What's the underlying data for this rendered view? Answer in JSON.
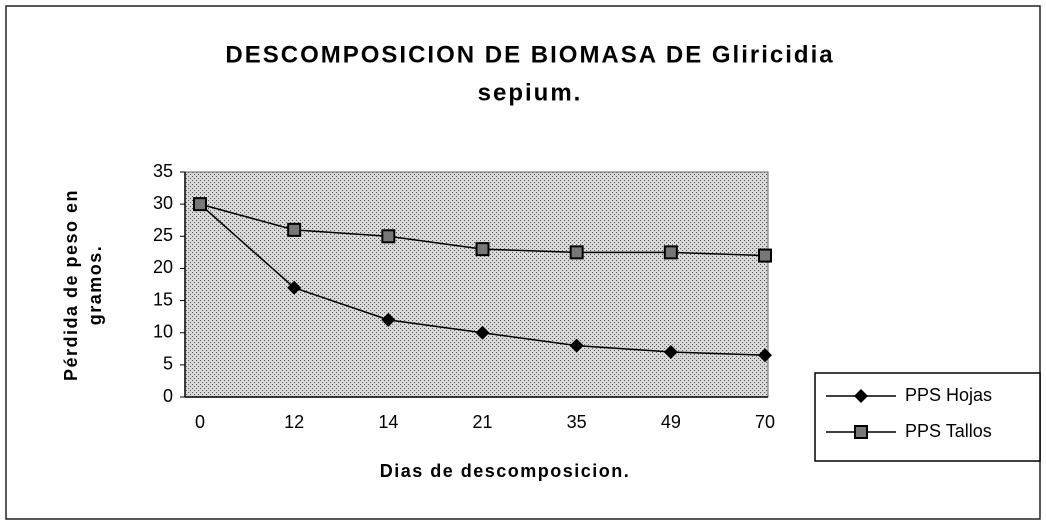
{
  "chart_data": {
    "type": "line",
    "title": [
      "DESCOMPOSICION DE BIOMASA DE Gliricidia",
      "sepium."
    ],
    "x_label": "Dias de descomposicion.",
    "y_label": [
      "Pérdida de peso en",
      "gramos."
    ],
    "categories": [
      "0",
      "12",
      "14",
      "21",
      "35",
      "49",
      "70"
    ],
    "series": [
      {
        "name": "PPS Hojas",
        "color": "#000000",
        "marker": "diamond",
        "values": [
          30,
          17,
          12,
          10,
          8,
          7,
          6.5
        ]
      },
      {
        "name": "PPS Tallos",
        "color": "#000000",
        "marker": "square",
        "values": [
          30,
          26,
          25,
          23,
          22.5,
          22.5,
          22
        ]
      }
    ],
    "ylim": [
      0,
      35
    ],
    "yticks": [
      0,
      5,
      10,
      15,
      20,
      25,
      30,
      35
    ],
    "legend": "right"
  }
}
